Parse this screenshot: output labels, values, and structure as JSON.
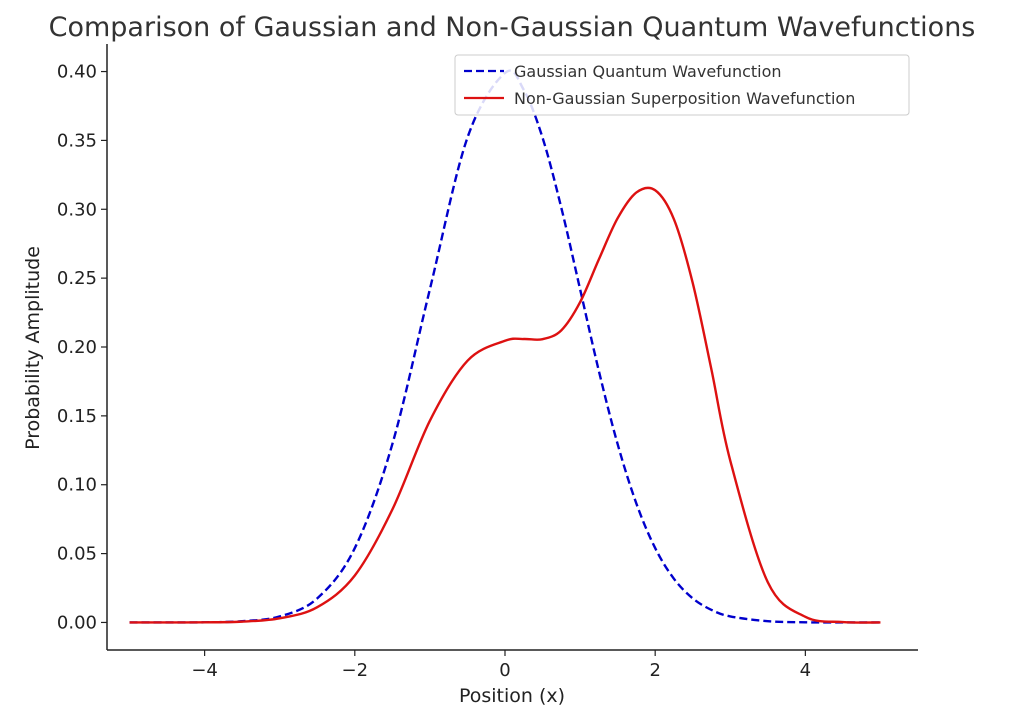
{
  "chart_data": {
    "type": "line",
    "title": "Comparison of Gaussian and Non-Gaussian Quantum Wavefunctions",
    "xlabel": "Position (x)",
    "ylabel": "Probability Amplitude",
    "xlim": [
      -5.3,
      5.5
    ],
    "ylim": [
      -0.02,
      0.42
    ],
    "xticks": [
      -4,
      -2,
      0,
      2,
      4
    ],
    "xtick_labels": [
      "−4",
      "−2",
      "0",
      "2",
      "4"
    ],
    "yticks": [
      0.0,
      0.05,
      0.1,
      0.15,
      0.2,
      0.25,
      0.3,
      0.35,
      0.4
    ],
    "ytick_labels": [
      "0.00",
      "0.05",
      "0.10",
      "0.15",
      "0.20",
      "0.25",
      "0.30",
      "0.35",
      "0.40"
    ],
    "grid": false,
    "legend_position": "top-right",
    "x": [
      -5.0,
      -4.5,
      -4.0,
      -3.5,
      -3.0,
      -2.5,
      -2.0,
      -1.5,
      -1.0,
      -0.5,
      0.0,
      0.25,
      0.5,
      0.75,
      1.0,
      1.25,
      1.5,
      1.75,
      2.0,
      2.25,
      2.5,
      2.75,
      3.0,
      3.5,
      4.0,
      4.5,
      5.0
    ],
    "series": [
      {
        "name": "Gaussian Quantum Wavefunction",
        "style": "dashed",
        "color": "#0000cc",
        "values": [
          0.0,
          0.0,
          0.0001,
          0.0009,
          0.0044,
          0.0175,
          0.054,
          0.1295,
          0.242,
          0.352,
          0.399,
          0.3867,
          0.352,
          0.3011,
          0.242,
          0.1826,
          0.1295,
          0.0863,
          0.054,
          0.0317,
          0.0175,
          0.0091,
          0.0044,
          0.0009,
          0.0001,
          0.0,
          0.0
        ]
      },
      {
        "name": "Non-Gaussian Superposition Wavefunction",
        "style": "solid",
        "color": "#dd1111",
        "values": [
          0.0,
          0.0,
          0.0001,
          0.0006,
          0.003,
          0.0111,
          0.0341,
          0.082,
          0.1465,
          0.19,
          0.2045,
          0.2058,
          0.2057,
          0.2121,
          0.2325,
          0.2636,
          0.2935,
          0.3122,
          0.3138,
          0.2927,
          0.2465,
          0.1834,
          0.1175,
          0.0292,
          0.0041,
          0.0003,
          0.0
        ]
      }
    ]
  }
}
